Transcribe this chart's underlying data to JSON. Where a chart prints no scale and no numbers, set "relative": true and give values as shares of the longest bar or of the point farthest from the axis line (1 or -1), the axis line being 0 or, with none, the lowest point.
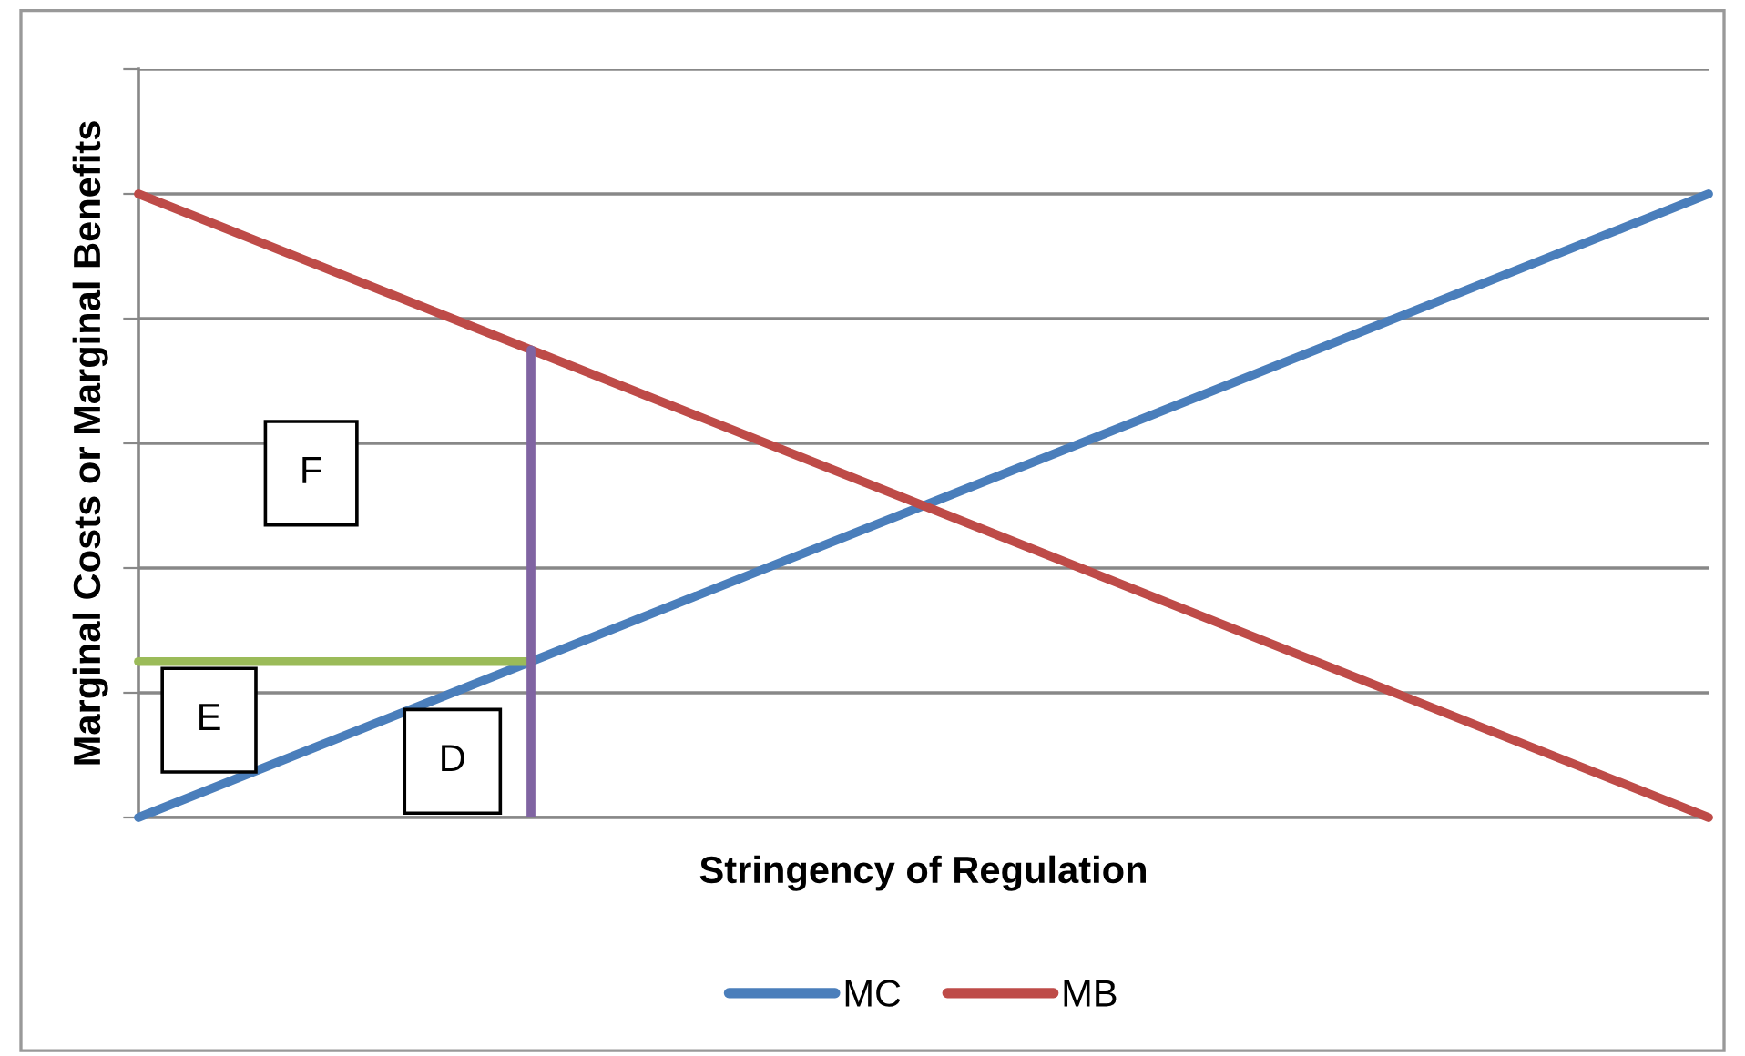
{
  "chart_data": {
    "type": "line",
    "relative": true,
    "xlabel": "Stringency of Regulation",
    "ylabel": "Marginal Costs or Marginal Benefits",
    "categories": [
      null,
      null,
      null,
      null,
      null
    ],
    "series": [
      {
        "name": "MC",
        "color": "#4a7ebb",
        "values": [
          0,
          0.25,
          0.5,
          0.75,
          1
        ]
      },
      {
        "name": "MB",
        "color": "#be4b48",
        "values": [
          1,
          0.75,
          0.5,
          0.25,
          0
        ]
      },
      {
        "color": "#9bbb59",
        "values": [
          0.25,
          0.25,
          null,
          null,
          null
        ]
      }
    ],
    "annotations": [
      "F",
      "E",
      "D"
    ],
    "grid": "y",
    "legend": "bottom",
    "marker": "none",
    "line_style": "solid"
  }
}
